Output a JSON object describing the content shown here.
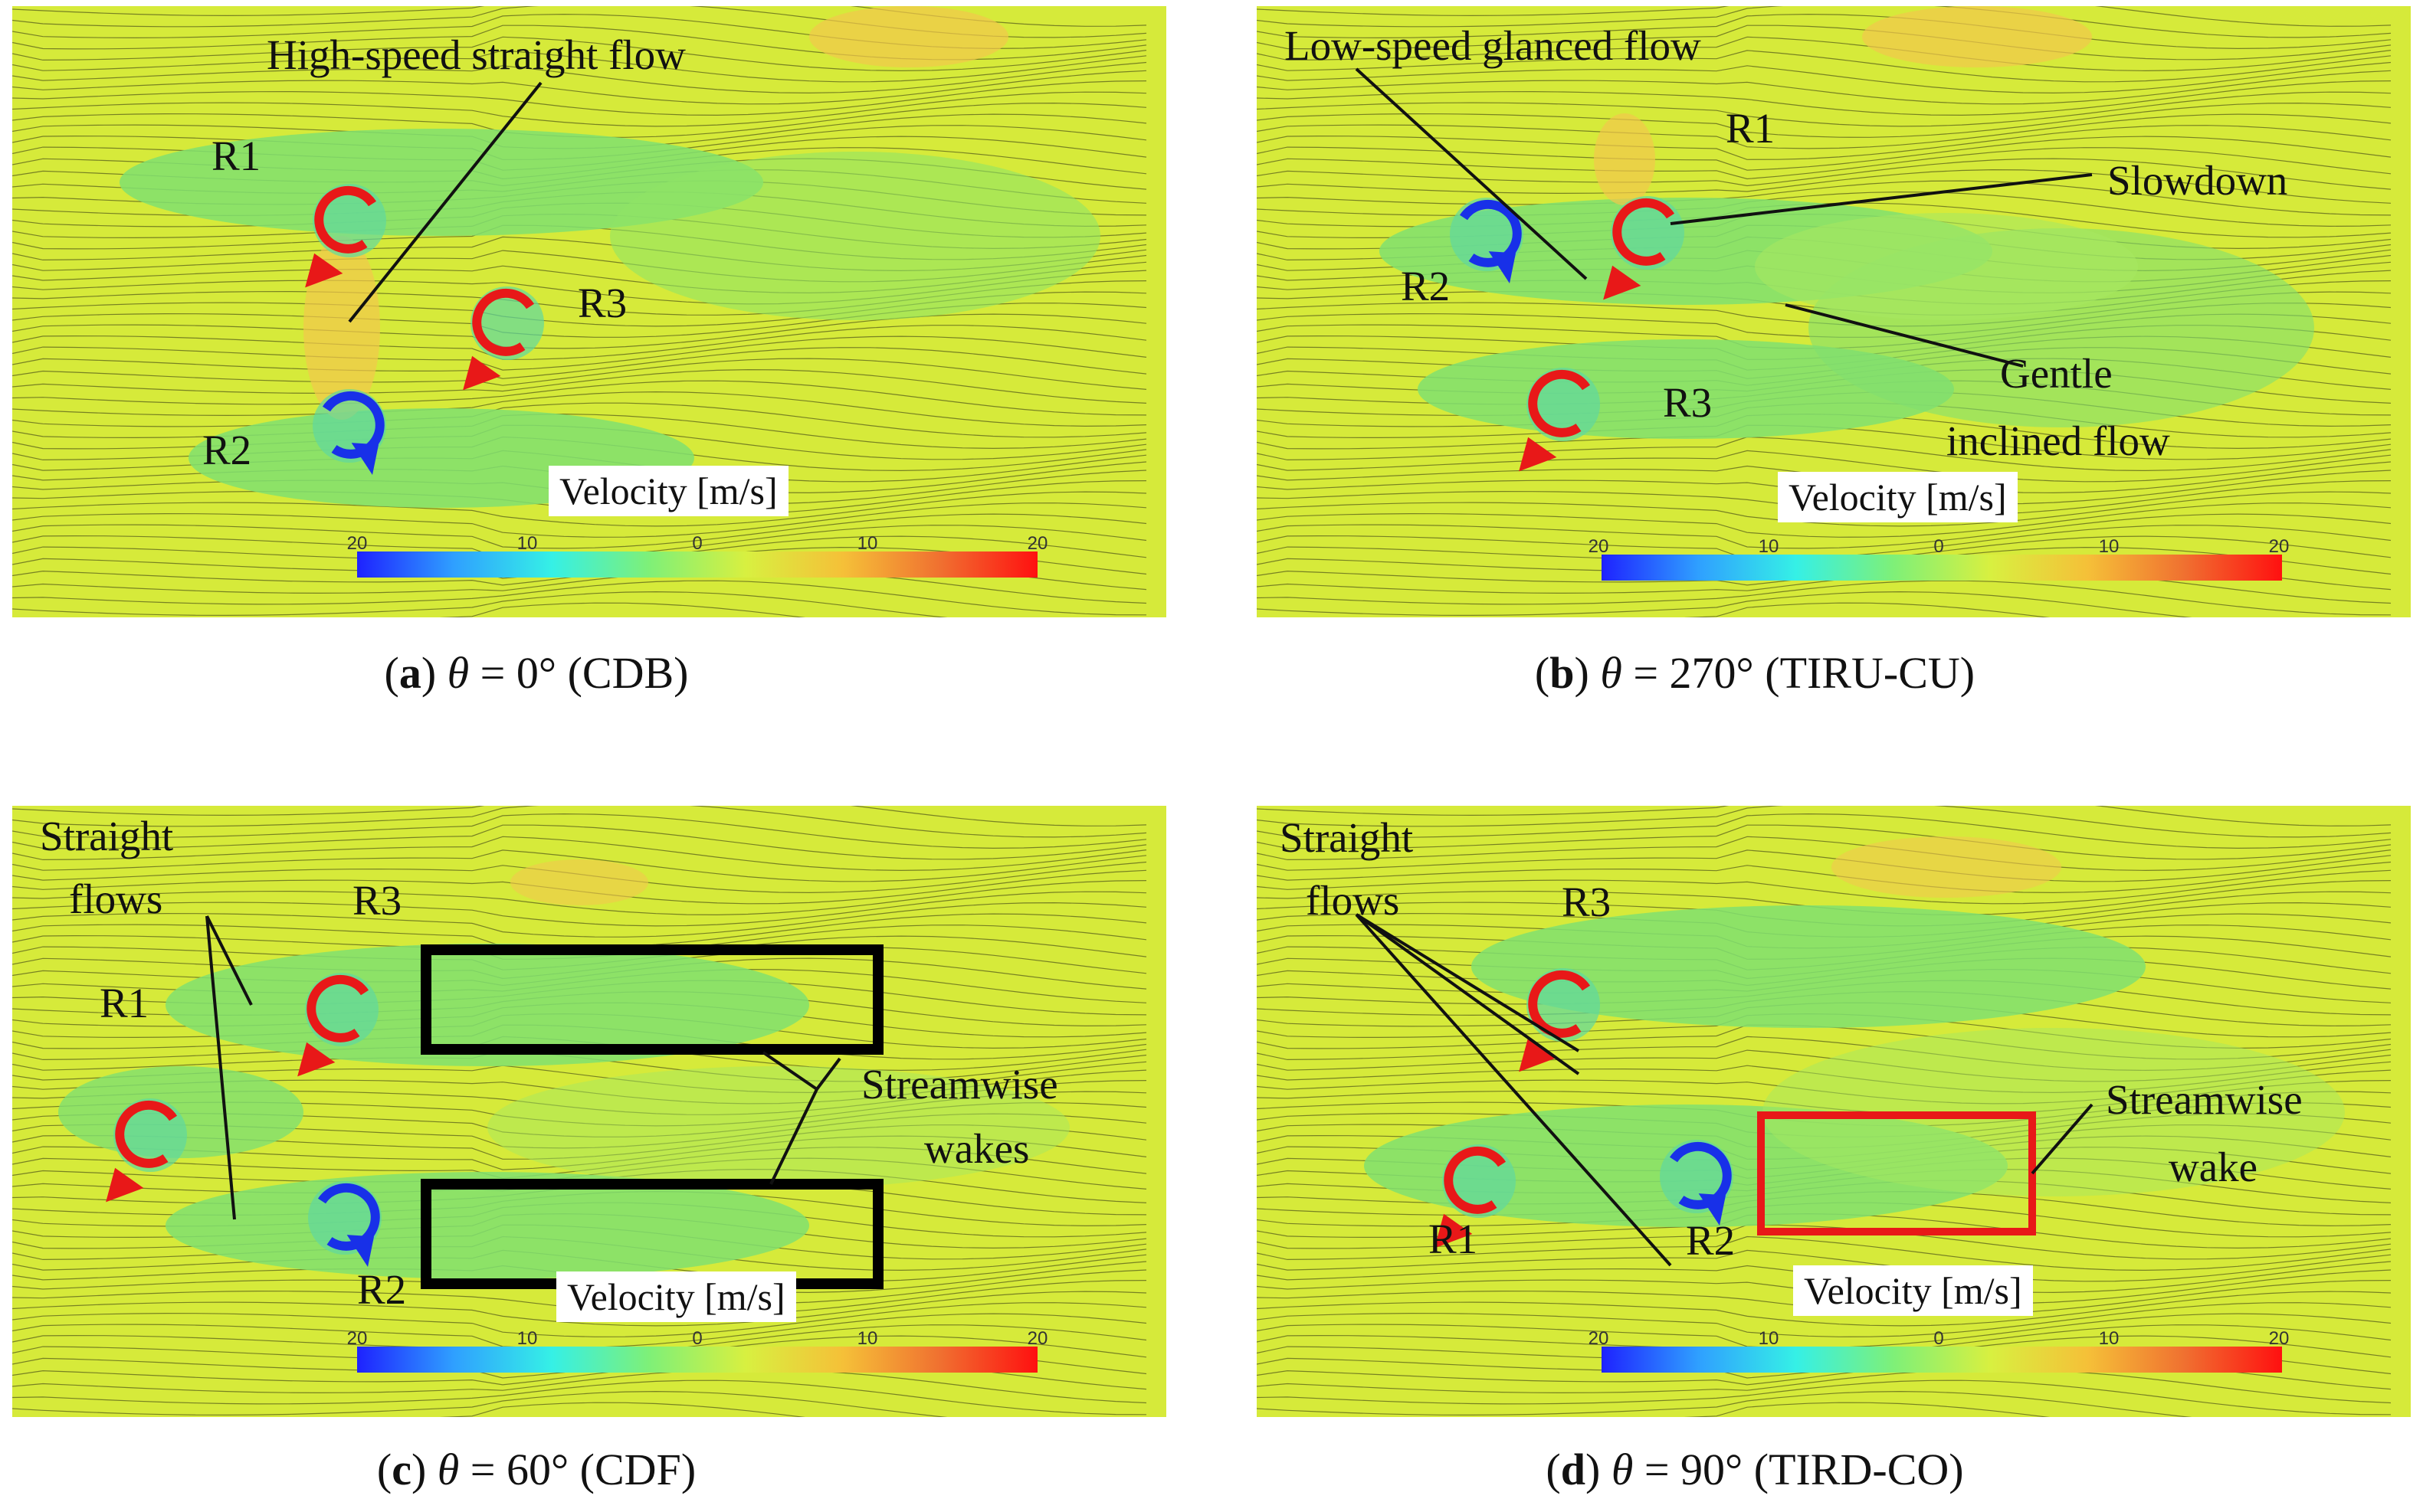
{
  "colorbar": {
    "title": "Velocity [m/s]",
    "ticks": [
      "20",
      "10",
      "0",
      "10",
      "20"
    ],
    "colors": [
      "#1e22ff",
      "#2fa0ff",
      "#35f0e6",
      "#7ef078",
      "#d8f040",
      "#f5c038",
      "#f07030",
      "#ff1010"
    ]
  },
  "colors": {
    "ccw_rotor_arrow": "#e81818",
    "cw_rotor_arrow": "#1830e8",
    "wake_box_c": "#000000",
    "wake_box_d": "#e81818"
  },
  "panels": [
    {
      "id": "a",
      "caption": {
        "letter": "a",
        "theta": "θ",
        "rest": " = 0° (CDB)"
      },
      "rotors": [
        {
          "label": "R1",
          "rotation": "counterclockwise",
          "color": "red"
        },
        {
          "label": "R2",
          "rotation": "clockwise",
          "color": "blue"
        },
        {
          "label": "R3",
          "rotation": "counterclockwise",
          "color": "red"
        }
      ],
      "annotations": [
        "High-speed straight flow"
      ]
    },
    {
      "id": "b",
      "caption": {
        "letter": "b",
        "theta": "θ",
        "rest": " = 270° (TIRU-CU)"
      },
      "rotors": [
        {
          "label": "R1",
          "rotation": "counterclockwise",
          "color": "red"
        },
        {
          "label": "R2",
          "rotation": "clockwise",
          "color": "blue"
        },
        {
          "label": "R3",
          "rotation": "counterclockwise",
          "color": "red"
        }
      ],
      "annotations": [
        "Low-speed glanced flow",
        "Slowdown",
        "Gentle",
        "inclined flow"
      ]
    },
    {
      "id": "c",
      "caption": {
        "letter": "c",
        "theta": "θ",
        "rest": " = 60° (CDF)"
      },
      "rotors": [
        {
          "label": "R1",
          "rotation": "counterclockwise",
          "color": "red"
        },
        {
          "label": "R2",
          "rotation": "clockwise",
          "color": "blue"
        },
        {
          "label": "R3",
          "rotation": "counterclockwise",
          "color": "red"
        }
      ],
      "annotations": [
        "Straight",
        "flows",
        "Streamwise",
        "wakes"
      ]
    },
    {
      "id": "d",
      "caption": {
        "letter": "d",
        "theta": "θ",
        "rest": " = 90° (TIRD-CO)"
      },
      "rotors": [
        {
          "label": "R1",
          "rotation": "counterclockwise",
          "color": "red"
        },
        {
          "label": "R2",
          "rotation": "clockwise",
          "color": "blue"
        },
        {
          "label": "R3",
          "rotation": "counterclockwise",
          "color": "red"
        }
      ],
      "annotations": [
        "Straight",
        "flows",
        "Streamwise",
        "wake"
      ]
    }
  ]
}
